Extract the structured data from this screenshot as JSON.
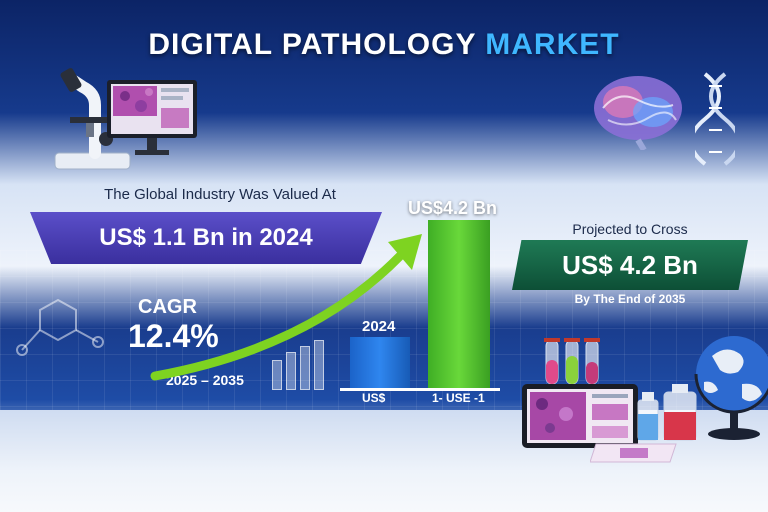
{
  "title": {
    "main": "DIGITAL PATHOLOGY",
    "accent": "MARKET"
  },
  "valued": {
    "intro": "The Global Industry Was Valued At",
    "amount": "US$ 1.1 Bn in 2024"
  },
  "projected": {
    "intro": "Projected to Cross",
    "amount": "US$ 4.2 Bn",
    "sub": "By The End of 2035"
  },
  "cagr": {
    "label": "CAGR",
    "value": "12.4%",
    "period": "2025 – 2035"
  },
  "bars": {
    "top_label": "US$4.2 Bn",
    "small_label": "2024",
    "left_axis": "US$",
    "right_axis": "1- USE -1"
  },
  "colors": {
    "accent": "#3fb7ff",
    "valued_banner": "#4a3fb8",
    "projected_banner": "#156a48",
    "arrow": "#7ed321",
    "bar_2024": "#2f86ef",
    "bar_2035": "#5fcf30"
  },
  "icons": [
    "microscope-icon",
    "monitor-icon",
    "brain-icon",
    "dna-icon",
    "test-tubes-icon",
    "tablet-icon",
    "bottles-icon",
    "globe-icon",
    "molecule-icon"
  ]
}
